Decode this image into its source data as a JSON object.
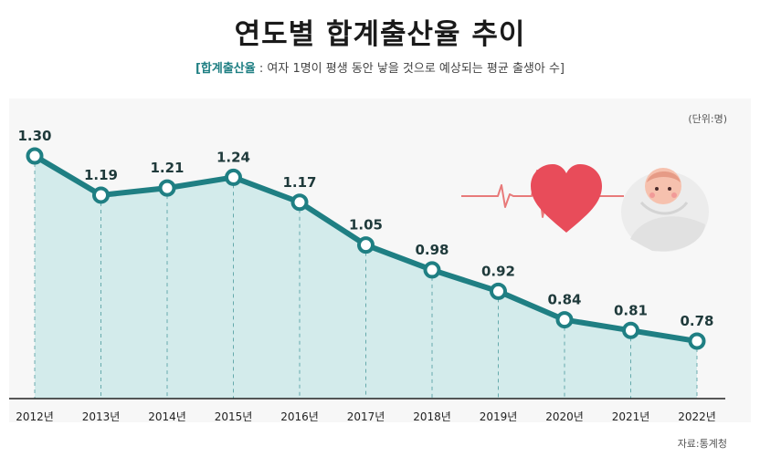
{
  "header": {
    "title": "연도별 합계출산율 추이",
    "subtitle_key": "[합계출산율",
    "subtitle_rest": ": 여자 1명이 평생 동안 낳을 것으로 예상되는 평균 출생아 수]"
  },
  "unit_note": "(단위:명)",
  "source_note": "자료:통계청",
  "colors": {
    "line": "#1f7f83",
    "area": "#d3ebeb",
    "heart": "#e84c5a",
    "pulse": "#e87a7a"
  },
  "chart_data": {
    "type": "area",
    "title": "연도별 합계출산율 추이",
    "categories": [
      "2012년",
      "2013년",
      "2014년",
      "2015년",
      "2016년",
      "2017년",
      "2018년",
      "2019년",
      "2020년",
      "2021년",
      "2022년"
    ],
    "series": [
      {
        "values": [
          1.3,
          1.19,
          1.21,
          1.24,
          1.17,
          1.05,
          0.98,
          0.92,
          0.84,
          0.81,
          0.78
        ],
        "labels": [
          "1.30",
          "1.19",
          "1.21",
          "1.24",
          "1.17",
          "1.05",
          "0.98",
          "0.92",
          "0.84",
          "0.81",
          "0.78"
        ]
      }
    ],
    "xlabel": "",
    "ylabel": "",
    "grid": false,
    "decorations": [
      "heartbeat-line",
      "heart-icon",
      "baby-illustration"
    ]
  }
}
